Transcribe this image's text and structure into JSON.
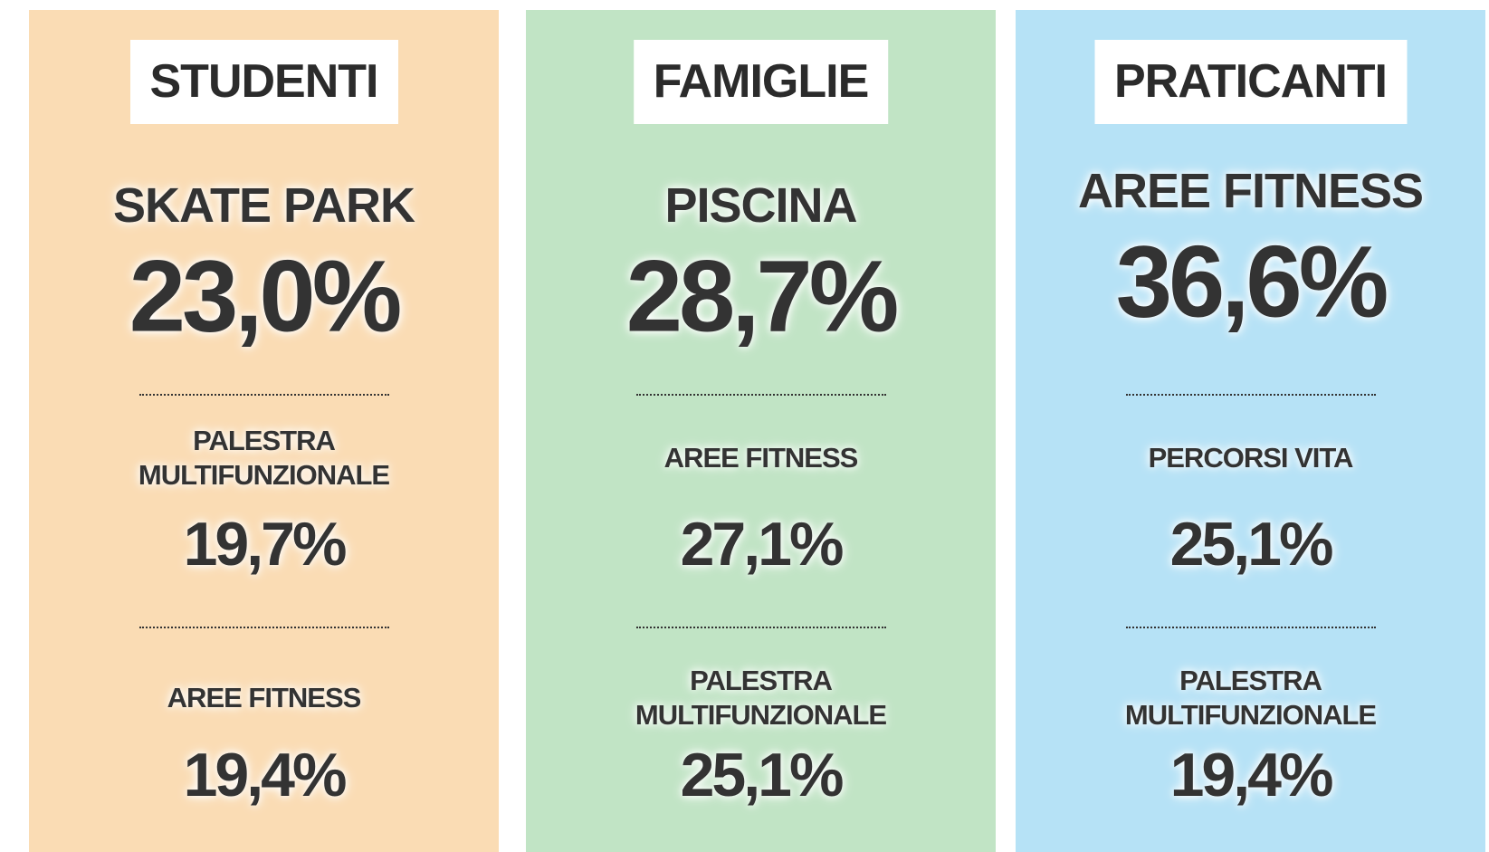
{
  "panels": [
    {
      "title": "STUDENTI",
      "items": [
        {
          "label": "SKATE PARK",
          "value": "23,0%"
        },
        {
          "label": "PALESTRA MULTIFUNZIONALE",
          "value": "19,7%"
        },
        {
          "label": "AREE FITNESS",
          "value": "19,4%"
        }
      ]
    },
    {
      "title": "FAMIGLIE",
      "items": [
        {
          "label": "PISCINA",
          "value": "28,7%"
        },
        {
          "label": "AREE FITNESS",
          "value": "27,1%"
        },
        {
          "label": "PALESTRA MULTIFUNZIONALE",
          "value": "25,1%"
        }
      ]
    },
    {
      "title": "PRATICANTI",
      "items": [
        {
          "label": "AREE FITNESS",
          "value": "36,6%"
        },
        {
          "label": "PERCORSI VITA",
          "value": "25,1%"
        },
        {
          "label": "PALESTRA MULTIFUNZIONALE",
          "value": "19,4%"
        }
      ]
    }
  ]
}
